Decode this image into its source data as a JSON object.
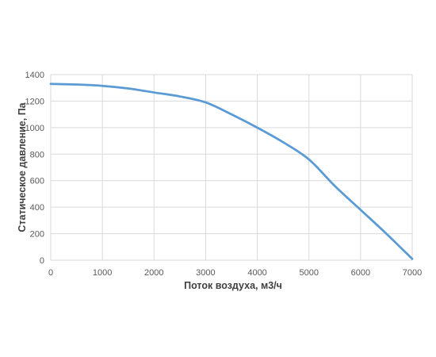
{
  "chart_data": {
    "type": "line",
    "title": "",
    "xlabel": "Поток воздуха, м3/ч",
    "ylabel": "Статическое давление, Па",
    "xlim": [
      0,
      7000
    ],
    "ylim": [
      0,
      1400
    ],
    "x_ticks": [
      "0",
      "1000",
      "2000",
      "3000",
      "4000",
      "5000",
      "6000",
      "7000"
    ],
    "y_ticks": [
      "0",
      "200",
      "400",
      "600",
      "800",
      "1000",
      "1200",
      "1400"
    ],
    "grid": true,
    "legend": "none",
    "series": [
      {
        "color": "#5b9bd5",
        "x": [
          0,
          500,
          1000,
          1500,
          2000,
          2500,
          3000,
          3500,
          4000,
          4500,
          5000,
          5500,
          6000,
          6500,
          7000
        ],
        "y": [
          1330,
          1325,
          1315,
          1295,
          1265,
          1235,
          1190,
          1100,
          1000,
          890,
          760,
          560,
          380,
          200,
          10
        ]
      }
    ]
  }
}
